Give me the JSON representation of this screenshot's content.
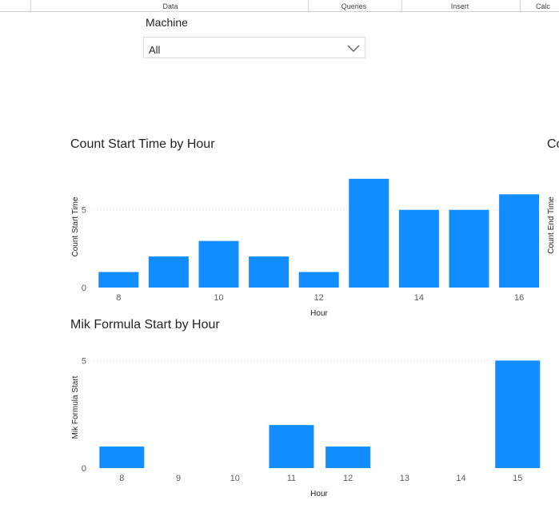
{
  "ribbon": {
    "tabs": [
      {
        "label": "Data"
      },
      {
        "label": "Queries"
      },
      {
        "label": "Insert"
      },
      {
        "label": "Calc"
      }
    ]
  },
  "slicer": {
    "title": "Machine",
    "value": "All",
    "icon": "chevron-down-icon"
  },
  "colors": {
    "bar": "#118DFF",
    "grid": "#d9d9d9",
    "text": "#605e5c"
  },
  "chart_data": [
    {
      "type": "bar",
      "title": "Count Start Time by Hour",
      "xlabel": "Hour",
      "ylabel": "Count Start Time",
      "x": [
        8,
        9,
        10,
        11,
        12,
        13,
        14,
        15,
        16
      ],
      "values": [
        1,
        2,
        3,
        2,
        1,
        7,
        5,
        5,
        6
      ],
      "xticks": [
        "8",
        "10",
        "12",
        "14",
        "16"
      ],
      "yticks": [
        "0",
        "5"
      ],
      "ylim": [
        0,
        7.3
      ],
      "grid": true
    },
    {
      "type": "bar",
      "title": "Mik Formula Start by Hour",
      "xlabel": "Hour",
      "ylabel": "Mik Formula Start",
      "x": [
        8,
        9,
        10,
        11,
        12,
        13,
        14,
        15
      ],
      "values": [
        1,
        0,
        0,
        2,
        1,
        0,
        0,
        5
      ],
      "xticks": [
        "8",
        "9",
        "10",
        "11",
        "12",
        "13",
        "14",
        "15"
      ],
      "yticks": [
        "0",
        "5"
      ],
      "ylim": [
        0,
        5.2
      ],
      "grid": true
    },
    {
      "type": "bar",
      "title": "Co",
      "ylabel": "Count End Time"
    }
  ]
}
